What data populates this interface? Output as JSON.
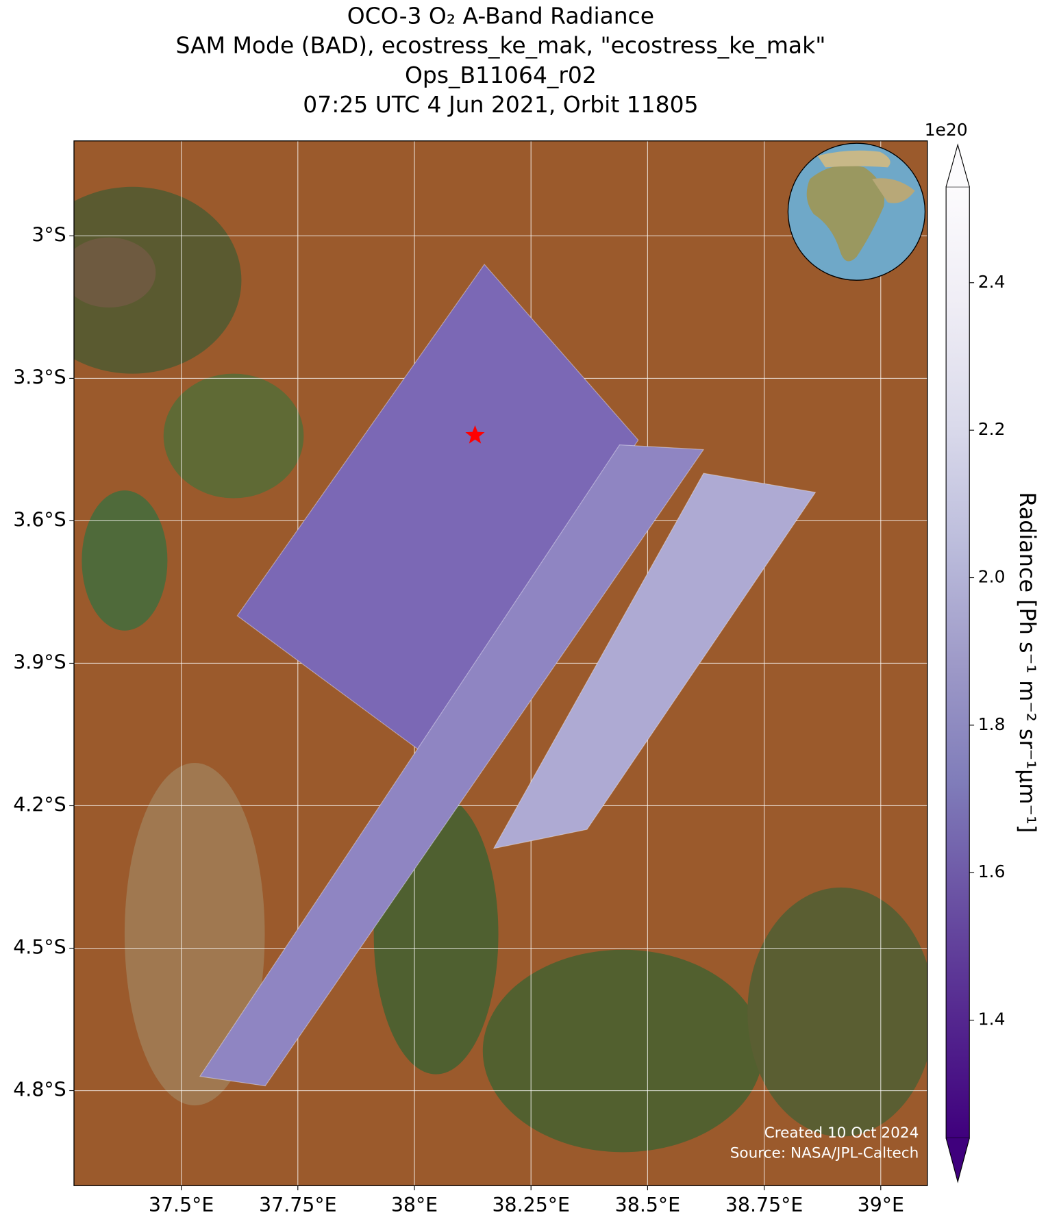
{
  "chart_data": {
    "type": "swath-map",
    "title": [
      "OCO-3 O₂ A-Band Radiance",
      "SAM Mode (BAD), ecostress_ke_mak, \"ecostress_ke_mak\"",
      "Ops_B11064_r02",
      "07:25 UTC 4 Jun 2021, Orbit 11805"
    ],
    "xlim": [
      37.27,
      39.1
    ],
    "ylim": [
      -5.0,
      -2.8
    ],
    "xticks": [
      {
        "value": 37.5,
        "label": "37.5°E"
      },
      {
        "value": 37.75,
        "label": "37.75°E"
      },
      {
        "value": 38,
        "label": "38°E"
      },
      {
        "value": 38.25,
        "label": "38.25°E"
      },
      {
        "value": 38.5,
        "label": "38.5°E"
      },
      {
        "value": 38.75,
        "label": "38.75°E"
      },
      {
        "value": 39,
        "label": "39°E"
      }
    ],
    "yticks": [
      {
        "value": -3,
        "label": "3°S"
      },
      {
        "value": -3.3,
        "label": "3.3°S"
      },
      {
        "value": -3.6,
        "label": "3.6°S"
      },
      {
        "value": -3.9,
        "label": "3.9°S"
      },
      {
        "value": -4.2,
        "label": "4.2°S"
      },
      {
        "value": -4.5,
        "label": "4.5°S"
      },
      {
        "value": -4.8,
        "label": "4.8°S"
      }
    ],
    "grid": true,
    "swaths": [
      {
        "lon": [
          37.62,
          38.15,
          38.48,
          38.02
        ],
        "lat": [
          -3.8,
          -3.06,
          -3.43,
          -4.09
        ],
        "color": "#7b68b5"
      },
      {
        "lon": [
          38.44,
          38.62,
          37.68,
          37.54
        ],
        "lat": [
          -3.44,
          -3.45,
          -4.79,
          -4.77
        ],
        "color": "#8f85c2"
      },
      {
        "lon": [
          38.62,
          38.86,
          38.37,
          38.17
        ],
        "lat": [
          -3.5,
          -3.54,
          -4.25,
          -4.29
        ],
        "color": "#aeaad3"
      }
    ],
    "target": {
      "lon": 38.13,
      "lat": -3.42,
      "color": "#ff0000"
    },
    "colorbar": {
      "label": "Radiance [Ph s⁻¹ m⁻² sr⁻¹μm⁻¹]",
      "offset": "1e20",
      "lim": [
        1.24,
        2.53
      ],
      "ticks": [
        1.4,
        1.6,
        1.8,
        {
          "value": 2,
          "label": "2.0"
        },
        2.2,
        2.4
      ],
      "colors": [
        "#3f007d",
        "#54278f",
        "#6a51a3",
        "#807dba",
        "#9e9ac8",
        "#bcbddc",
        "#dadaeb",
        "#efedf5",
        "#fcfbfd"
      ]
    },
    "annotations": [
      "Created 10 Oct 2024",
      "Source: NASA/JPL-Caltech"
    ]
  }
}
